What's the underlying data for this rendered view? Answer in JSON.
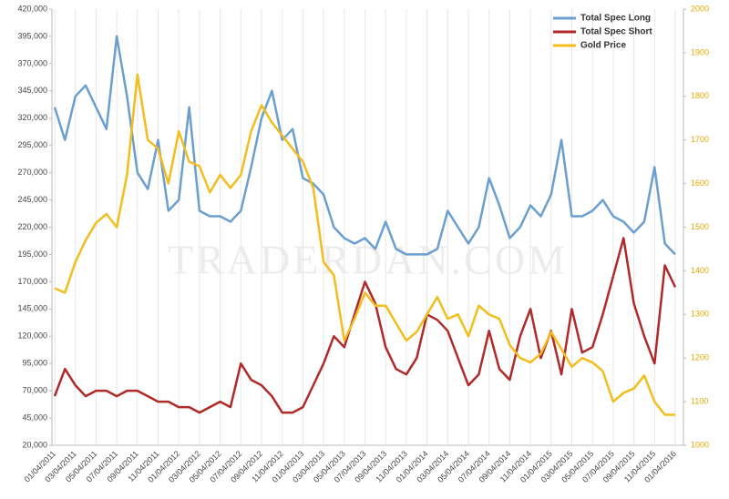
{
  "chart_data": {
    "type": "line",
    "annotations": [
      "TRADERDAN.COM"
    ],
    "categories": [
      "01/04/2011",
      null,
      "03/04/2011",
      null,
      "05/04/2011",
      null,
      "07/04/2011",
      null,
      "09/04/2011",
      null,
      "11/04/2011",
      null,
      "01/04/2012",
      null,
      "03/04/2012",
      null,
      "05/04/2012",
      null,
      "07/04/2012",
      null,
      "09/04/2012",
      null,
      "11/04/2012",
      null,
      "01/04/2013",
      null,
      "03/04/2013",
      null,
      "05/04/2013",
      null,
      "07/04/2013",
      null,
      "09/04/2013",
      null,
      "11/04/2013",
      null,
      "01/04/2014",
      null,
      "03/04/2014",
      null,
      "05/04/2014",
      null,
      "07/04/2014",
      null,
      "09/04/2014",
      null,
      "11/04/2014",
      null,
      "01/04/2015",
      null,
      "03/04/2015",
      null,
      "05/04/2015",
      null,
      "07/04/2015",
      null,
      "09/04/2015",
      null,
      "11/04/2015",
      null,
      "01/04/2016"
    ],
    "series": [
      {
        "name": "Total Spec Long",
        "color": "#6a9fcf",
        "values": [
          330000,
          300000,
          340000,
          350000,
          330000,
          310000,
          395000,
          340000,
          270000,
          255000,
          300000,
          235000,
          245000,
          330000,
          235000,
          230000,
          230000,
          225000,
          235000,
          275000,
          320000,
          345000,
          300000,
          310000,
          265000,
          260000,
          250000,
          220000,
          210000,
          205000,
          210000,
          200000,
          225000,
          200000,
          195000,
          195000,
          195000,
          200000,
          235000,
          220000,
          205000,
          220000,
          265000,
          240000,
          210000,
          220000,
          240000,
          230000,
          250000,
          300000,
          230000,
          230000,
          235000,
          245000,
          230000,
          225000,
          215000,
          225000,
          275000,
          205000,
          195000
        ]
      },
      {
        "name": "Total Spec Short",
        "color": "#b02a2a",
        "values": [
          65000,
          90000,
          75000,
          65000,
          70000,
          70000,
          65000,
          70000,
          70000,
          65000,
          60000,
          60000,
          55000,
          55000,
          50000,
          55000,
          60000,
          55000,
          95000,
          80000,
          75000,
          65000,
          50000,
          50000,
          55000,
          75000,
          95000,
          120000,
          110000,
          140000,
          170000,
          150000,
          110000,
          90000,
          85000,
          100000,
          140000,
          135000,
          125000,
          100000,
          75000,
          85000,
          125000,
          90000,
          80000,
          120000,
          145000,
          100000,
          125000,
          85000,
          145000,
          105000,
          110000,
          140000,
          175000,
          210000,
          150000,
          120000,
          95000,
          185000,
          165000
        ]
      },
      {
        "name": "Gold Price",
        "color": "#f2bd1d",
        "axis": "y2",
        "values": [
          1360,
          1350,
          1420,
          1470,
          1510,
          1530,
          1500,
          1620,
          1850,
          1700,
          1680,
          1600,
          1720,
          1650,
          1640,
          1580,
          1620,
          1590,
          1620,
          1720,
          1780,
          1740,
          1710,
          1680,
          1650,
          1590,
          1420,
          1390,
          1240,
          1290,
          1350,
          1320,
          1320,
          1280,
          1240,
          1260,
          1300,
          1340,
          1290,
          1300,
          1250,
          1320,
          1300,
          1290,
          1230,
          1200,
          1190,
          1210,
          1260,
          1220,
          1180,
          1200,
          1190,
          1170,
          1100,
          1120,
          1130,
          1160,
          1100,
          1070,
          1070
        ]
      }
    ],
    "ylim": [
      20000,
      420000
    ],
    "yticks": [
      {
        "value": 20000,
        "label": "20,000"
      },
      {
        "value": 45000,
        "label": "45,000"
      },
      {
        "value": 70000,
        "label": "70,000"
      },
      {
        "value": 95000,
        "label": "95,000"
      },
      {
        "value": 120000,
        "label": "120,000"
      },
      {
        "value": 145000,
        "label": "145,000"
      },
      {
        "value": 170000,
        "label": "170,000"
      },
      {
        "value": 195000,
        "label": "195,000"
      },
      {
        "value": 220000,
        "label": "220,000"
      },
      {
        "value": 245000,
        "label": "245,000"
      },
      {
        "value": 270000,
        "label": "270,000"
      },
      {
        "value": 295000,
        "label": "295,000"
      },
      {
        "value": 320000,
        "label": "320,000"
      },
      {
        "value": 345000,
        "label": "345,000"
      },
      {
        "value": 370000,
        "label": "370,000"
      },
      {
        "value": 395000,
        "label": "395,000"
      },
      {
        "value": 420000,
        "label": "420,000"
      }
    ],
    "y2lim": [
      1000,
      2000
    ],
    "y2ticks": [
      1000,
      1100,
      1200,
      1300,
      1400,
      1500,
      1600,
      1700,
      1800,
      1900,
      2000
    ],
    "grid": true,
    "legend": "top-right"
  }
}
